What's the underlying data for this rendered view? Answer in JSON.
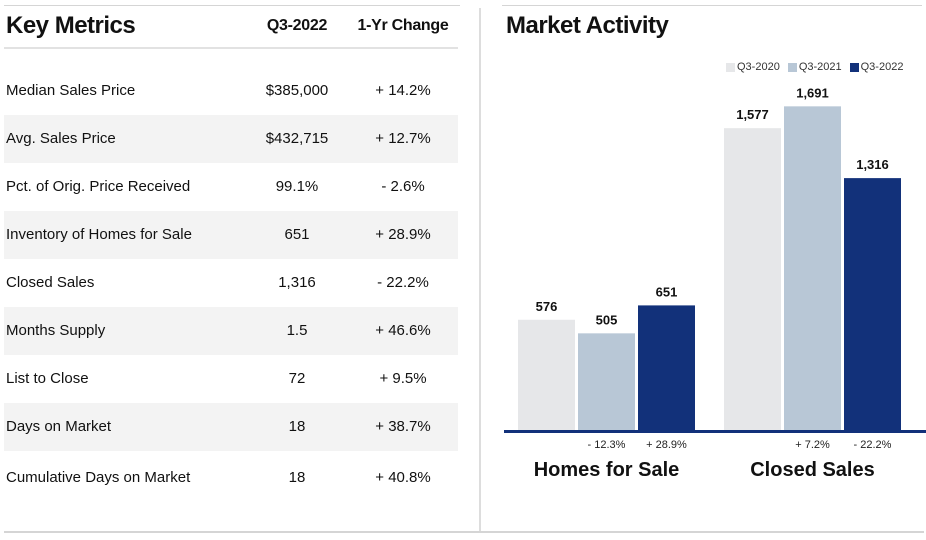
{
  "key_metrics": {
    "title": "Key Metrics",
    "col_period": "Q3-2022",
    "col_change": "1-Yr Change",
    "rows": [
      {
        "label": "Median Sales Price",
        "value": "$385,000",
        "change": "+ 14.2%"
      },
      {
        "label": "Avg. Sales Price",
        "value": "$432,715",
        "change": "+ 12.7%"
      },
      {
        "label": "Pct. of Orig. Price Received",
        "value": "99.1%",
        "change": "- 2.6%"
      },
      {
        "label": "Inventory of Homes for Sale",
        "value": "651",
        "change": "+ 28.9%"
      },
      {
        "label": "Closed Sales",
        "value": "1,316",
        "change": "- 22.2%"
      },
      {
        "label": "Months Supply",
        "value": "1.5",
        "change": "+ 46.6%"
      },
      {
        "label": "List to Close",
        "value": "72",
        "change": "+ 9.5%"
      },
      {
        "label": "Days on Market",
        "value": "18",
        "change": "+ 38.7%"
      },
      {
        "label": "Cumulative Days on Market",
        "value": "18",
        "change": "+ 40.8%"
      }
    ]
  },
  "market_activity": {
    "title": "Market Activity"
  },
  "chart_data": {
    "type": "bar",
    "categories": [
      "Homes for Sale",
      "Closed Sales"
    ],
    "series": [
      {
        "name": "Q3-2020",
        "color": "#e6e7e9",
        "values": [
          576,
          1577
        ],
        "labels": [
          "576",
          "1,577"
        ]
      },
      {
        "name": "Q3-2021",
        "color": "#b8c7d6",
        "values": [
          505,
          1691
        ],
        "labels": [
          "505",
          "1,691"
        ]
      },
      {
        "name": "Q3-2022",
        "color": "#12317a",
        "values": [
          651,
          1316
        ],
        "labels": [
          "651",
          "1,316"
        ]
      }
    ],
    "changes": [
      {
        "category": "Homes for Sale",
        "q3_2021": "- 12.3%",
        "q3_2022": "+ 28.9%"
      },
      {
        "category": "Closed Sales",
        "q3_2021": "+ 7.2%",
        "q3_2022": "- 22.2%"
      }
    ],
    "axis_color": "#12317a",
    "legend_position": "top-right",
    "grid": false
  }
}
